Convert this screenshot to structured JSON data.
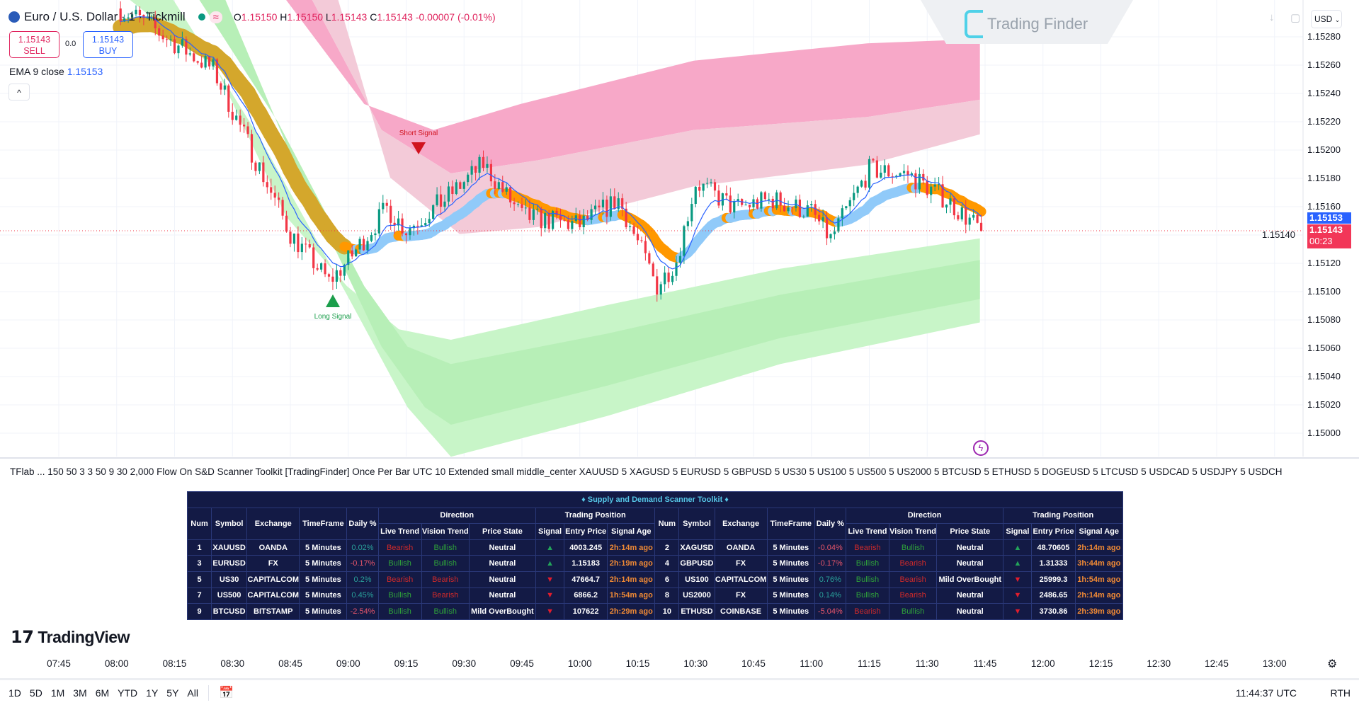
{
  "header": {
    "symbol_title": "Euro / U.S. Dollar · 1 · Tickmill",
    "ohlc": {
      "o_label": "O",
      "o": "1.15150",
      "h_label": "H",
      "h": "1.15150",
      "l_label": "L",
      "l": "1.15143",
      "c_label": "C",
      "c": "1.15143",
      "change": "-0.00007 (-0.01%)"
    },
    "sell": {
      "price": "1.15143",
      "label": "SELL"
    },
    "buy": {
      "price": "1.15143",
      "label": "BUY"
    },
    "spread": "0.0",
    "ema": {
      "label": "EMA 9 close",
      "value": "1.15153"
    },
    "currency": "USD",
    "watermark": "Trading Finder"
  },
  "price_axis": {
    "ticks": [
      "1.15280",
      "1.15260",
      "1.15240",
      "1.15220",
      "1.15200",
      "1.15180",
      "1.15160",
      "1.15140",
      "1.15120",
      "1.15100",
      "1.15080",
      "1.15060",
      "1.15040",
      "1.15020",
      "1.15000"
    ],
    "ema_label": "1.15153",
    "last_price": "1.15143",
    "countdown": "00:23"
  },
  "signals": {
    "short": "Short Signal",
    "long": "Long Signal"
  },
  "colors": {
    "up": "#089981",
    "down": "#f23645",
    "ema": "#2962ff",
    "ribbon_up": "#90caf9",
    "ribbon_down": "#ff9800",
    "ribbon_early": "#d4a72c",
    "supply": "#f7a8c8",
    "demand": "#c8f5c8"
  },
  "indicator_line": "TFlab ... 150 50 3 3 50 9 30 2,000 Flow On S&D Scanner Toolkit [TradingFinder] Once Per Bar UTC 10 Extended small middle_center XAUUSD 5 XAGUSD 5 EURUSD 5 GBPUSD 5 US30 5 US100 5 US500 5 US2000 5 BTCUSD 5 ETHUSD 5 DOGEUSD 5 LTCUSD 5 USDCAD 5 USDJPY 5 USDCH",
  "scanner": {
    "title": "♦ Supply and Demand Scanner Toolkit ♦",
    "group_direction": "Direction",
    "group_position": "Trading Position",
    "columns": [
      "Num",
      "Symbol",
      "Exchange",
      "TimeFrame",
      "Daily %",
      "Live Trend",
      "Vision Trend",
      "Price State",
      "Signal",
      "Entry Price",
      "Signal Age"
    ],
    "rows": [
      [
        [
          "1",
          "XAUUSD",
          "OANDA",
          "5 Minutes",
          "0.02%",
          "Bearish",
          "Bullish",
          "Neutral",
          "▲",
          "4003.245",
          "2h:14m ago"
        ],
        [
          "2",
          "XAGUSD",
          "OANDA",
          "5 Minutes",
          "-0.04%",
          "Bearish",
          "Bullish",
          "Neutral",
          "▲",
          "48.70605",
          "2h:14m ago"
        ]
      ],
      [
        [
          "3",
          "EURUSD",
          "FX",
          "5 Minutes",
          "-0.17%",
          "Bullish",
          "Bullish",
          "Neutral",
          "▲",
          "1.15183",
          "2h:19m ago"
        ],
        [
          "4",
          "GBPUSD",
          "FX",
          "5 Minutes",
          "-0.17%",
          "Bullish",
          "Bearish",
          "Neutral",
          "▲",
          "1.31333",
          "3h:44m ago"
        ]
      ],
      [
        [
          "5",
          "US30",
          "CAPITALCOM",
          "5 Minutes",
          "0.2%",
          "Bearish",
          "Bearish",
          "Neutral",
          "▼",
          "47664.7",
          "2h:14m ago"
        ],
        [
          "6",
          "US100",
          "CAPITALCOM",
          "5 Minutes",
          "0.76%",
          "Bullish",
          "Bearish",
          "Mild OverBought",
          "▼",
          "25999.3",
          "1h:54m ago"
        ]
      ],
      [
        [
          "7",
          "US500",
          "CAPITALCOM",
          "5 Minutes",
          "0.45%",
          "Bullish",
          "Bearish",
          "Neutral",
          "▼",
          "6866.2",
          "1h:54m ago"
        ],
        [
          "8",
          "US2000",
          "FX",
          "5 Minutes",
          "0.14%",
          "Bullish",
          "Bearish",
          "Neutral",
          "▼",
          "2486.65",
          "2h:14m ago"
        ]
      ],
      [
        [
          "9",
          "BTCUSD",
          "BITSTAMP",
          "5 Minutes",
          "-2.54%",
          "Bullish",
          "Bullish",
          "Mild OverBought",
          "▼",
          "107622",
          "2h:29m ago"
        ],
        [
          "10",
          "ETHUSD",
          "COINBASE",
          "5 Minutes",
          "-5.04%",
          "Bearish",
          "Bullish",
          "Neutral",
          "▼",
          "3730.86",
          "2h:39m ago"
        ]
      ]
    ]
  },
  "brand": "TradingView",
  "time_axis": [
    "07:45",
    "08:00",
    "08:15",
    "08:30",
    "08:45",
    "09:00",
    "09:15",
    "09:30",
    "09:45",
    "10:00",
    "10:15",
    "10:30",
    "10:45",
    "11:00",
    "11:15",
    "11:30",
    "11:45",
    "12:00",
    "12:15",
    "12:30",
    "12:45",
    "13:00"
  ],
  "ranges": [
    "1D",
    "5D",
    "1M",
    "3M",
    "6M",
    "YTD",
    "1Y",
    "5Y",
    "All"
  ],
  "clock": "11:44:37 UTC",
  "session": "RTH"
}
